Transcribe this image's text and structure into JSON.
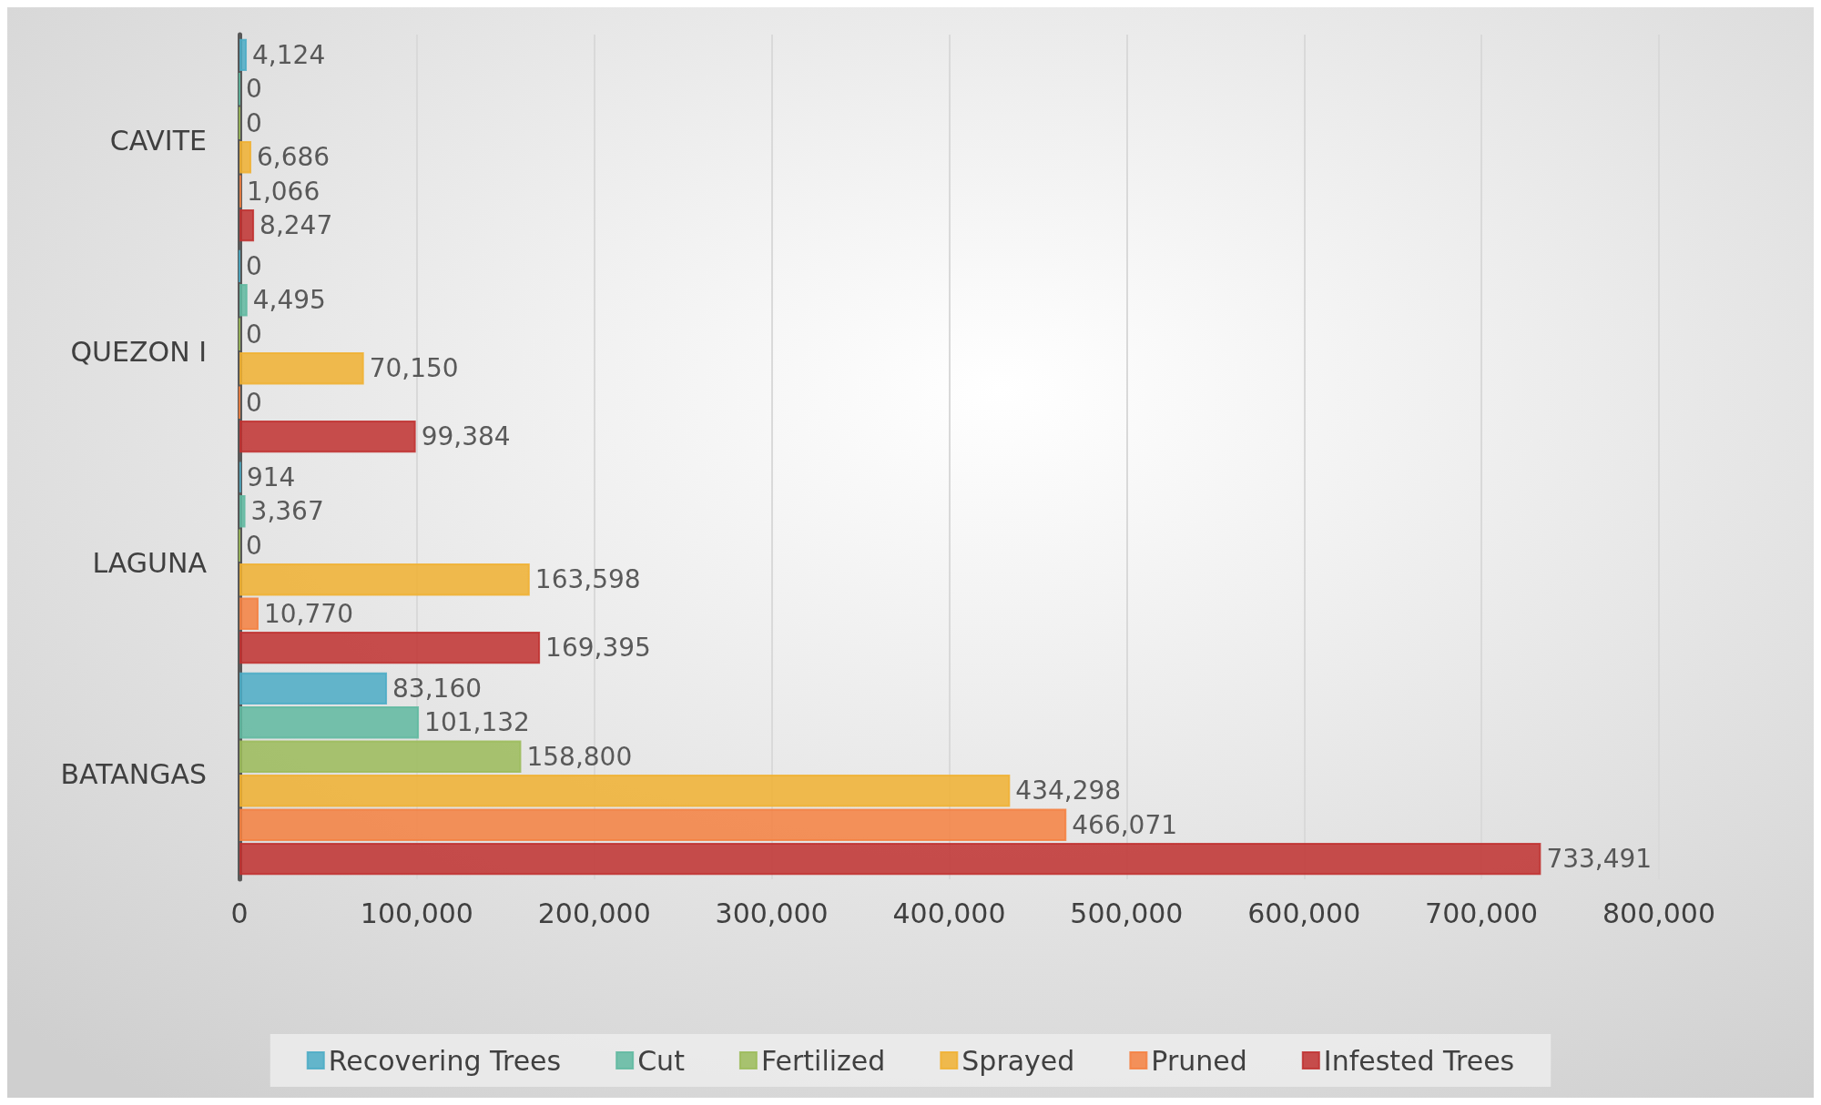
{
  "chart_data": {
    "type": "bar",
    "orientation": "horizontal",
    "categories": [
      "CAVITE",
      "QUEZON I",
      "LAGUNA",
      "BATANGAS"
    ],
    "series": [
      {
        "name": "Recovering Trees",
        "color": "#4bacc6",
        "values": [
          4124,
          0,
          914,
          83160
        ],
        "value_labels": [
          "4,124",
          "0",
          "914",
          "83,160"
        ]
      },
      {
        "name": "Cut",
        "color": "#5fb8a0",
        "values": [
          0,
          4495,
          3367,
          101132
        ],
        "value_labels": [
          "0",
          "4,495",
          "3,367",
          "101,132"
        ]
      },
      {
        "name": "Fertilized",
        "color": "#9bbb59",
        "values": [
          0,
          0,
          0,
          158800
        ],
        "value_labels": [
          "0",
          "0",
          "0",
          "158,800"
        ]
      },
      {
        "name": "Sprayed",
        "color": "#f0b030",
        "values": [
          6686,
          70150,
          163598,
          434298
        ],
        "value_labels": [
          "6,686",
          "70,150",
          "163,598",
          "434,298"
        ]
      },
      {
        "name": "Pruned",
        "color": "#f58040",
        "values": [
          1066,
          0,
          10770,
          466071
        ],
        "value_labels": [
          "1,066",
          "0",
          "10,770",
          "466,071"
        ]
      },
      {
        "name": "Infested Trees",
        "color": "#c0302f",
        "values": [
          8247,
          99384,
          169395,
          733491
        ],
        "value_labels": [
          "8,247",
          "99,384",
          "169,395",
          "733,491"
        ]
      }
    ],
    "xlim": [
      0,
      800000
    ],
    "xticks": [
      0,
      {
        "value": 100000,
        "label": "100,000"
      },
      {
        "value": 200000,
        "label": "200,000"
      },
      {
        "value": 300000,
        "label": "300,000"
      },
      {
        "value": 400000,
        "label": "400,000"
      },
      {
        "value": 500000,
        "label": "500,000"
      },
      {
        "value": 600000,
        "label": "600,000"
      },
      {
        "value": 700000,
        "label": "700,000"
      },
      {
        "value": 800000,
        "label": "800,000"
      }
    ],
    "grid": "x",
    "legend": "bottom"
  }
}
